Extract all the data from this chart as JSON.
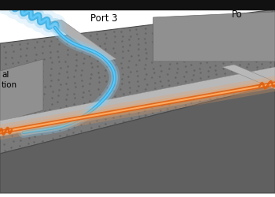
{
  "port3_label": "Port 3",
  "port1_label": "Po",
  "left_label_top": "al",
  "left_label_bot": "tion",
  "chip_top_color": "#7a7a7a",
  "chip_side_front": "#606060",
  "chip_side_right": "#6a6a6a",
  "chip_edge_color": "#4a4a4a",
  "raised_color": "#909090",
  "raised_edge": "#6a6a6a",
  "wg_color": "#b0b0b0",
  "wg_dark": "#888888",
  "blue_core": "#2aa8e0",
  "blue_glow": "#88ccf0",
  "blue_bright": "#60c8f8",
  "orange_core": "#e06010",
  "orange_glow": "#f0a060",
  "orange_bright": "#f08030",
  "bg_color": "#ffffff",
  "black_top": "#111111"
}
